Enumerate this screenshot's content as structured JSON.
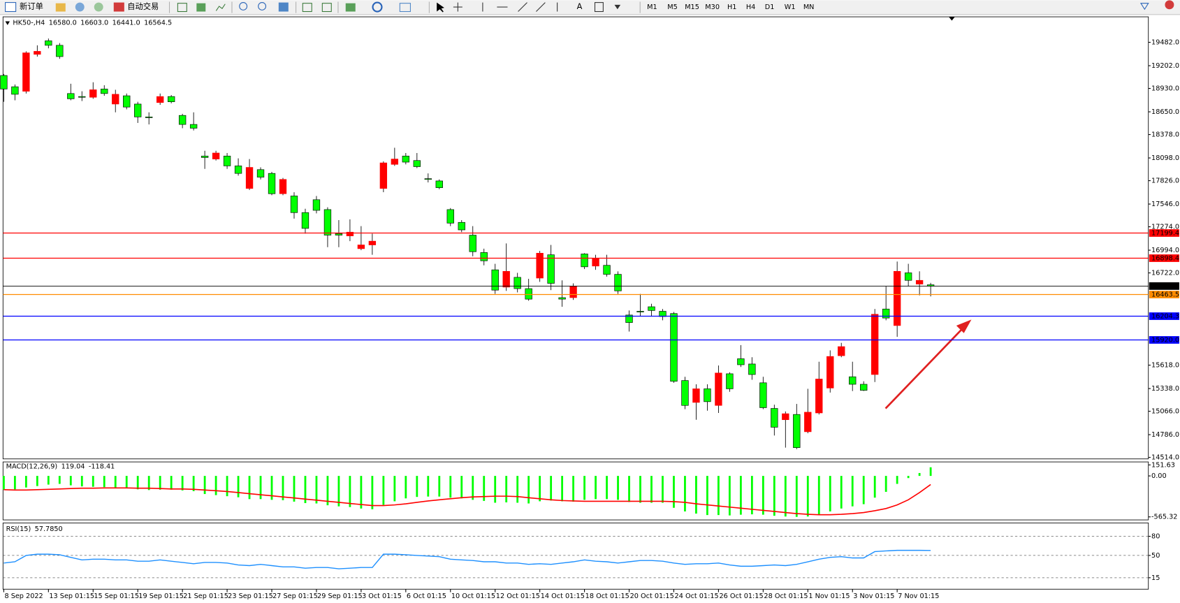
{
  "toolbar": {
    "new_order": "新订单",
    "auto_trading": "自动交易",
    "timeframes": [
      "M1",
      "M5",
      "M15",
      "M30",
      "H1",
      "H4",
      "D1",
      "W1",
      "MN"
    ]
  },
  "chart_data": [
    {
      "type": "candlestick",
      "title": "HK50-,H4",
      "header_values": [
        "16580.0",
        "16603.0",
        "16441.0",
        "16564.5"
      ],
      "categories": [
        "8 Sep 2022",
        null,
        null,
        null,
        "13 Sep 01:15",
        null,
        null,
        null,
        "15 Sep 01:15",
        null,
        null,
        null,
        "19 Sep 01:15",
        null,
        null,
        null,
        "21 Sep 01:15",
        null,
        null,
        null,
        "23 Sep 01:15",
        null,
        null,
        null,
        "27 Sep 01:15",
        null,
        null,
        null,
        "29 Sep 01:15",
        null,
        null,
        null,
        "3 Oct 01:15",
        null,
        null,
        null,
        "6 Oct 01:15",
        null,
        null,
        null,
        "10 Oct 01:15",
        null,
        null,
        null,
        "12 Oct 01:15",
        null,
        null,
        null,
        "14 Oct 01:15",
        null,
        null,
        null,
        "18 Oct 01:15",
        null,
        null,
        null,
        "20 Oct 01:15",
        null,
        null,
        null,
        "24 Oct 01:15",
        null,
        null,
        null,
        "26 Oct 01:15",
        null,
        null,
        null,
        "28 Oct 01:15",
        null,
        null,
        null,
        "1 Nov 01:15",
        null,
        null,
        null,
        "3 Nov 01:15",
        null,
        null,
        null,
        "7 Nov 01:15",
        null,
        null,
        null
      ],
      "open": [
        19085,
        18950,
        18896,
        19338,
        19500,
        19446,
        18869,
        18833,
        18824,
        18923,
        18743,
        18842,
        18743,
        18589,
        18761,
        18833,
        18607,
        18499,
        18121,
        18085,
        18121,
        18003,
        17733,
        17958,
        17913,
        17670,
        17643,
        17444,
        17598,
        17480,
        17192,
        17165,
        17012,
        17057,
        17733,
        18021,
        18121,
        18067,
        17850,
        17823,
        17480,
        17327,
        17174,
        16966,
        16759,
        16552,
        16669,
        16534,
        16660,
        16939,
        16426,
        16426,
        16949,
        16804,
        16813,
        16705,
        16218,
        16263,
        16317,
        16263,
        16236,
        15434,
        15172,
        15335,
        15136,
        15515,
        15695,
        15632,
        15407,
        15100,
        14965,
        15028,
        14821,
        15046,
        15344,
        15731,
        15479,
        15389,
        15506,
        16290,
        16092,
        16723,
        16588,
        16580
      ],
      "high": [
        19103,
        18977,
        19374,
        19446,
        19527,
        19473,
        18986,
        18896,
        19004,
        18968,
        18914,
        18869,
        18770,
        18644,
        18869,
        18851,
        18626,
        18644,
        18184,
        18184,
        18157,
        18093,
        18085,
        17985,
        17931,
        17859,
        17688,
        17490,
        17643,
        17508,
        17354,
        17363,
        17282,
        17192,
        18057,
        18220,
        18157,
        18157,
        17913,
        17841,
        17498,
        17354,
        17282,
        17012,
        16831,
        17075,
        16723,
        16651,
        16985,
        17057,
        16633,
        16597,
        16958,
        16939,
        16939,
        16741,
        16272,
        16471,
        16353,
        16290,
        16254,
        15479,
        15389,
        15389,
        15614,
        15533,
        15858,
        15713,
        15479,
        15145,
        15064,
        15154,
        15335,
        15659,
        15795,
        15885,
        15659,
        15425,
        16290,
        16561,
        16858,
        16831,
        16741,
        16603
      ],
      "low": [
        18770,
        18788,
        18869,
        19311,
        19410,
        19284,
        18788,
        18779,
        18806,
        18842,
        18644,
        18680,
        18517,
        18499,
        18734,
        18752,
        18454,
        18427,
        17967,
        18067,
        17967,
        17886,
        17715,
        17841,
        17652,
        17652,
        17372,
        17192,
        17435,
        17030,
        17030,
        17102,
        16994,
        16939,
        17688,
        18003,
        18021,
        17976,
        17805,
        17724,
        17282,
        17210,
        16921,
        16813,
        16471,
        16507,
        16489,
        16389,
        16615,
        16516,
        16317,
        16399,
        16768,
        16759,
        16678,
        16471,
        16020,
        16200,
        16200,
        16155,
        15407,
        15091,
        14965,
        15073,
        15046,
        15299,
        15596,
        15443,
        15091,
        14776,
        14631,
        14613,
        14803,
        15028,
        15290,
        15713,
        15308,
        15308,
        15416,
        16155,
        15957,
        16561,
        16453,
        16441
      ],
      "close": [
        18923,
        18860,
        19356,
        19374,
        19446,
        19311,
        18806,
        18824,
        18914,
        18869,
        18860,
        18707,
        18589,
        18580,
        18833,
        18770,
        18499,
        18454,
        18103,
        18157,
        18003,
        17913,
        17985,
        17868,
        17670,
        17841,
        17444,
        17255,
        17471,
        17174,
        17174,
        17210,
        17057,
        17102,
        18039,
        18085,
        18048,
        17994,
        17841,
        17742,
        17318,
        17237,
        16976,
        16867,
        16516,
        16741,
        16534,
        16408,
        16958,
        16597,
        16408,
        16561,
        16795,
        16894,
        16705,
        16507,
        16128,
        16254,
        16272,
        16200,
        15425,
        15136,
        15335,
        15181,
        15524,
        15335,
        15623,
        15506,
        15109,
        14875,
        15037,
        14631,
        15055,
        15452,
        15722,
        15840,
        15389,
        15317,
        16227,
        16182,
        16741,
        16633,
        16633,
        16564.5
      ],
      "up_color": "#ff0000",
      "down_color": "#00ff00",
      "bid_line_color": "#000000",
      "ylim": [
        14496,
        19787
      ],
      "yticks": [
        {
          "value": 19482,
          "label": "19482.0"
        },
        {
          "value": 19202,
          "label": "19202.0"
        },
        {
          "value": 18930,
          "label": "18930.0"
        },
        {
          "value": 18650,
          "label": "18650.0"
        },
        {
          "value": 18378,
          "label": "18378.0"
        },
        {
          "value": 18098,
          "label": "18098.0"
        },
        {
          "value": 17826,
          "label": "17826.0"
        },
        {
          "value": 17546,
          "label": "17546.0"
        },
        {
          "value": 17274,
          "label": "17274.0"
        },
        {
          "value": 16994,
          "label": "16994.0"
        },
        {
          "value": 16722,
          "label": "16722.0"
        },
        {
          "value": 15618,
          "label": "15618.0"
        },
        {
          "value": 15338,
          "label": "15338.0"
        },
        {
          "value": 15066,
          "label": "15066.0"
        },
        {
          "value": 14786,
          "label": "14786.0"
        },
        {
          "value": 14514,
          "label": "14514.0"
        }
      ],
      "levels": [
        {
          "value": 17199.4,
          "color": "#ff0000"
        },
        {
          "value": 16898.4,
          "color": "#ff0000"
        },
        {
          "value": 16463.5,
          "color": "#ff8c00"
        },
        {
          "value": 16204.3,
          "color": "#0000ff"
        },
        {
          "value": 15920,
          "label": "15920.0",
          "color": "#0000ff"
        }
      ],
      "grid": false
    },
    {
      "type": "macd",
      "title": "MACD(12,26,9)",
      "histogram": {
        "color": "#00ff00",
        "values": [
          -190,
          -185,
          -160,
          -140,
          -120,
          -110,
          -130,
          -145,
          -150,
          -155,
          -165,
          -170,
          -185,
          -195,
          -190,
          -190,
          -200,
          -210,
          -250,
          -265,
          -280,
          -295,
          -320,
          -320,
          -330,
          -335,
          -355,
          -375,
          -380,
          -405,
          -420,
          -430,
          -450,
          -460,
          -400,
          -350,
          -310,
          -290,
          -285,
          -285,
          -300,
          -310,
          -330,
          -345,
          -370,
          -365,
          -370,
          -380,
          -350,
          -340,
          -350,
          -355,
          -330,
          -320,
          -320,
          -330,
          -360,
          -370,
          -370,
          -370,
          -440,
          -490,
          -520,
          -540,
          -540,
          -545,
          -535,
          -530,
          -535,
          -550,
          -560,
          -565,
          -560,
          -530,
          -490,
          -450,
          -420,
          -390,
          -300,
          -220,
          -110,
          -30,
          40,
          119.04
        ]
      },
      "signal": {
        "color": "#ff0000",
        "values": [
          -190,
          -195,
          -195,
          -190,
          -185,
          -180,
          -175,
          -170,
          -170,
          -165,
          -165,
          -165,
          -170,
          -170,
          -175,
          -180,
          -180,
          -185,
          -195,
          -205,
          -215,
          -230,
          -245,
          -260,
          -275,
          -290,
          -305,
          -320,
          -335,
          -350,
          -365,
          -380,
          -395,
          -410,
          -410,
          -400,
          -385,
          -365,
          -345,
          -330,
          -315,
          -300,
          -290,
          -285,
          -280,
          -280,
          -285,
          -300,
          -315,
          -330,
          -340,
          -345,
          -350,
          -350,
          -350,
          -350,
          -350,
          -350,
          -350,
          -350,
          -355,
          -365,
          -385,
          -400,
          -415,
          -430,
          -445,
          -460,
          -475,
          -490,
          -505,
          -520,
          -530,
          -535,
          -535,
          -530,
          -520,
          -505,
          -480,
          -450,
          -400,
          -330,
          -230,
          -118.41
        ]
      },
      "ylim": [
        -607,
        193
      ],
      "yticks": [
        151.63,
        {
          "value": 0,
          "label": "0.00"
        },
        -565.32
      ]
    },
    {
      "type": "rsi",
      "title": "RSI(15)",
      "last_value_label": "57.7850",
      "color": "#1e90ff",
      "values": [
        38,
        40,
        50,
        52,
        52,
        51,
        47,
        43,
        44,
        44,
        43,
        43,
        41,
        41,
        43,
        41,
        39,
        37,
        39,
        39,
        38,
        35,
        34,
        36,
        34,
        32,
        32,
        30,
        31,
        31,
        29,
        30,
        31,
        31,
        52,
        52,
        51,
        50,
        49,
        48,
        44,
        43,
        42,
        40,
        40,
        38,
        38,
        36,
        37,
        36,
        38,
        40,
        43,
        41,
        40,
        38,
        40,
        42,
        42,
        41,
        38,
        36,
        37,
        37,
        38,
        35,
        33,
        33,
        34,
        35,
        34,
        36,
        40,
        44,
        47,
        48,
        46,
        46,
        56,
        57,
        58,
        58,
        58,
        57.785
      ],
      "ylim": [
        -3,
        101
      ],
      "yticks": [
        80,
        50,
        15
      ],
      "grid": true
    }
  ]
}
